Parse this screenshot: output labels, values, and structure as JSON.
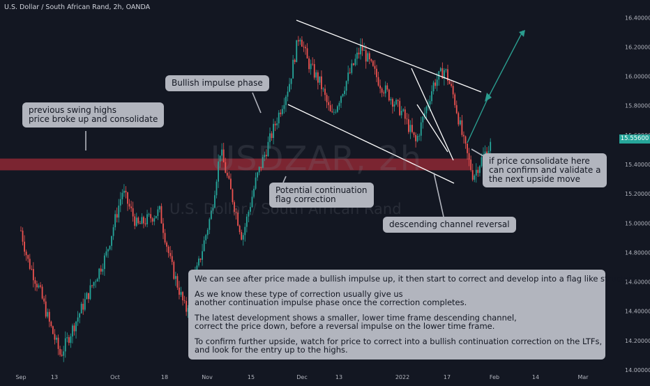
{
  "header": {
    "title": "U.S. Dollar / South African Rand, 2h, OANDA"
  },
  "watermark": {
    "symbol": "USDZAR, 2h",
    "name": "U.S. Dollar / South African Rand"
  },
  "current_price": "15.55600",
  "colors": {
    "background": "#131722",
    "up": "#26a69a",
    "down": "#ef5350",
    "zone": "#8e2834",
    "projection": "#2a9d8f",
    "note_bg": "#b2b5be"
  },
  "chart_data": {
    "type": "candlestick",
    "symbol": "USDZAR",
    "timeframe": "2h",
    "ylim": [
      13.91,
      16.52
    ],
    "yticks": [
      "16.40000",
      "16.20000",
      "16.00000",
      "15.80000",
      "15.60000",
      "15.40000",
      "15.20000",
      "15.00000",
      "14.80000",
      "14.60000",
      "14.40000",
      "14.20000",
      "14.00000"
    ],
    "ytick_values": [
      16.4,
      16.2,
      16.0,
      15.8,
      15.6,
      15.4,
      15.2,
      15.0,
      14.8,
      14.6,
      14.4,
      14.2,
      14.0
    ],
    "xticks": [
      "Sep",
      "13",
      "Oct",
      "18",
      "Nov",
      "15",
      "Dec",
      "13",
      "2022",
      "17",
      "Feb",
      "14",
      "Mar"
    ],
    "price_path": {
      "x": [
        "Sep",
        "13",
        "Oct",
        "18",
        "Nov",
        "15",
        "Dec",
        "13",
        "2022",
        "17"
      ],
      "points": [
        [
          0,
          14.95
        ],
        [
          0.2,
          14.75
        ],
        [
          0.55,
          14.55
        ],
        [
          0.85,
          14.32
        ],
        [
          1.1,
          14.1
        ],
        [
          1.45,
          14.42
        ],
        [
          1.85,
          14.78
        ],
        [
          2.15,
          15.22
        ],
        [
          2.45,
          14.98
        ],
        [
          2.9,
          15.08
        ],
        [
          3.15,
          14.72
        ],
        [
          3.5,
          14.4
        ],
        [
          3.8,
          14.72
        ],
        [
          4.1,
          15.08
        ],
        [
          4.3,
          15.5
        ],
        [
          4.55,
          15.2
        ],
        [
          4.8,
          14.9
        ],
        [
          5.1,
          15.3
        ],
        [
          5.4,
          15.6
        ],
        [
          5.75,
          15.95
        ],
        [
          5.95,
          16.3
        ],
        [
          6.15,
          16.1
        ],
        [
          6.5,
          15.95
        ],
        [
          6.8,
          15.72
        ],
        [
          7.1,
          15.95
        ],
        [
          7.35,
          16.2
        ],
        [
          7.65,
          15.95
        ],
        [
          8.0,
          15.75
        ],
        [
          8.3,
          15.55
        ],
        [
          8.55,
          15.8
        ],
        [
          8.7,
          15.95
        ],
        [
          8.95,
          16.05
        ],
        [
          9.15,
          15.85
        ],
        [
          9.35,
          15.55
        ],
        [
          9.55,
          15.32
        ],
        [
          9.75,
          15.45
        ],
        [
          9.95,
          15.55
        ]
      ]
    },
    "support_zone": [
      15.36,
      15.44
    ],
    "annotations": [
      "previous swing highs\nprice broke up and consolidate",
      "Bullish impulse phase",
      "Potential continuation\nflag correction",
      "descending channel reversal",
      "if price consolidate here\ncan confirm and validate a\nthe next upside move"
    ]
  },
  "notes": {
    "swing": "previous swing highs\nprice broke up and consolidate",
    "impulse": "Bullish impulse phase",
    "flag": "Potential continuation\nflag correction",
    "channel": "descending channel reversal",
    "confirm": "if price consolidate here\ncan confirm and validate a\nthe next upside move",
    "summary": [
      "We can see after price made a bullish impulse up, it then start to correct and develop into a flag like structure.",
      "As we know these type of correction usually give us\nanother continuation impulse phase once the correction completes.",
      "The latest development shows a smaller, lower time frame descending channel,\ncorrect the price down, before a reversal impulse on the lower time frame.",
      "To confirm further upside, watch for price to correct into a bullish continuation correction on the LTFs,\nand look for the entry up to the highs."
    ]
  }
}
